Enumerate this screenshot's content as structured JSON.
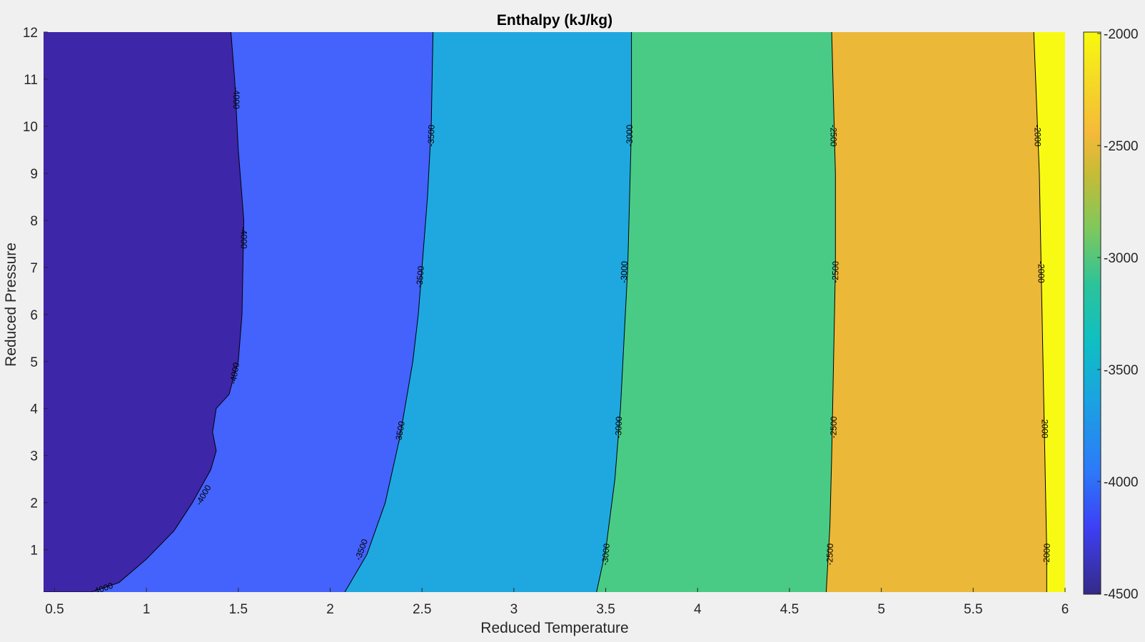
{
  "chart_data": {
    "type": "contourf",
    "title": "Enthalpy (kJ/kg)",
    "xlabel": "Reduced Temperature",
    "ylabel": "Reduced Pressure",
    "xlim": [
      0.44,
      6.0
    ],
    "ylim": [
      0.1,
      12
    ],
    "xticks": [
      0.5,
      1,
      1.5,
      2,
      2.5,
      3,
      3.5,
      4,
      4.5,
      5,
      5.5,
      6
    ],
    "xtick_labels": [
      "0.5",
      "1",
      "1.5",
      "2",
      "2.5",
      "3",
      "3.5",
      "4",
      "4.5",
      "5",
      "5.5",
      "6"
    ],
    "yticks": [
      1,
      2,
      3,
      4,
      5,
      6,
      7,
      8,
      9,
      10,
      11,
      12
    ],
    "ytick_labels": [
      "1",
      "2",
      "3",
      "4",
      "5",
      "6",
      "7",
      "8",
      "9",
      "10",
      "11",
      "12"
    ],
    "colorbar": {
      "limits": [
        -4500,
        -2000
      ],
      "ticks": [
        -2000,
        -2500,
        -3000,
        -3500,
        -4000,
        -4500
      ],
      "tick_labels": [
        "-2000",
        "-2500",
        "-3000",
        "-3500",
        "-4000",
        "-4500"
      ],
      "colormap": "parula"
    },
    "levels": [
      {
        "value": -4000,
        "label": "-4000",
        "line": [
          [
            0.44,
            0.1
          ],
          [
            0.7,
            0.1
          ],
          [
            0.85,
            0.3
          ],
          [
            1.0,
            0.8
          ],
          [
            1.15,
            1.4
          ],
          [
            1.25,
            2.0
          ],
          [
            1.35,
            2.7
          ],
          [
            1.38,
            3.1
          ],
          [
            1.36,
            3.5
          ],
          [
            1.38,
            4.0
          ],
          [
            1.45,
            4.3
          ],
          [
            1.47,
            4.6
          ],
          [
            1.5,
            5.0
          ],
          [
            1.52,
            6.0
          ],
          [
            1.53,
            8.0
          ],
          [
            1.5,
            9.5
          ],
          [
            1.48,
            11.0
          ],
          [
            1.46,
            12.0
          ]
        ],
        "labels_at": [
          [
            0.76,
            0.17,
            -20
          ],
          [
            1.31,
            2.16,
            -60
          ],
          [
            1.48,
            4.75,
            -80
          ],
          [
            1.53,
            7.63,
            90
          ],
          [
            1.49,
            10.6,
            90
          ]
        ]
      },
      {
        "value": -3500,
        "label": "-3500",
        "line": [
          [
            2.08,
            0.1
          ],
          [
            2.2,
            0.9
          ],
          [
            2.3,
            2.0
          ],
          [
            2.38,
            3.4
          ],
          [
            2.45,
            5.0
          ],
          [
            2.48,
            6.0
          ],
          [
            2.5,
            7.0
          ],
          [
            2.53,
            8.5
          ],
          [
            2.55,
            10.0
          ],
          [
            2.56,
            12.0
          ]
        ],
        "labels_at": [
          [
            2.17,
            1.0,
            -70
          ],
          [
            2.38,
            3.5,
            -80
          ],
          [
            2.49,
            6.8,
            -85
          ],
          [
            2.55,
            9.8,
            -88
          ]
        ]
      },
      {
        "value": -3000,
        "label": "-3000",
        "line": [
          [
            3.45,
            0.1
          ],
          [
            3.5,
            1.0
          ],
          [
            3.55,
            2.5
          ],
          [
            3.58,
            4.0
          ],
          [
            3.6,
            5.5
          ],
          [
            3.62,
            7.0
          ],
          [
            3.63,
            8.5
          ],
          [
            3.64,
            10.0
          ],
          [
            3.64,
            12.0
          ]
        ],
        "labels_at": [
          [
            3.5,
            0.9,
            -85
          ],
          [
            3.57,
            3.6,
            -88
          ],
          [
            3.6,
            6.9,
            -88
          ],
          [
            3.63,
            9.8,
            -90
          ]
        ]
      },
      {
        "value": -2500,
        "label": "-2500",
        "line": [
          [
            4.7,
            0.1
          ],
          [
            4.72,
            1.5
          ],
          [
            4.73,
            3.0
          ],
          [
            4.74,
            5.0
          ],
          [
            4.75,
            7.0
          ],
          [
            4.75,
            9.0
          ],
          [
            4.74,
            10.5
          ],
          [
            4.73,
            12.0
          ]
        ],
        "labels_at": [
          [
            4.72,
            0.9,
            -88
          ],
          [
            4.74,
            3.6,
            -89
          ],
          [
            4.75,
            6.9,
            -89
          ],
          [
            4.74,
            9.8,
            90
          ]
        ]
      },
      {
        "value": -2000,
        "label": "-2000",
        "line": [
          [
            5.9,
            0.1
          ],
          [
            5.9,
            1.0
          ],
          [
            5.89,
            3.0
          ],
          [
            5.88,
            5.0
          ],
          [
            5.87,
            7.0
          ],
          [
            5.86,
            9.0
          ],
          [
            5.84,
            11.0
          ],
          [
            5.83,
            12.0
          ]
        ],
        "labels_at": [
          [
            5.9,
            0.9,
            -88
          ],
          [
            5.89,
            3.6,
            90
          ],
          [
            5.87,
            6.9,
            90
          ],
          [
            5.85,
            9.8,
            90
          ]
        ]
      }
    ],
    "bands": [
      {
        "range": "<-4000",
        "color": "#3e26a8"
      },
      {
        "range": "-4000..-3500",
        "color": "#4462fc"
      },
      {
        "range": "-3500..-3000",
        "color": "#1fa8e0"
      },
      {
        "range": "-3000..-2500",
        "color": "#4acb85"
      },
      {
        "range": "-2500..-2000",
        "color": "#ecb837"
      },
      {
        "range": ">-2000",
        "color": "#f8fa14"
      }
    ]
  }
}
